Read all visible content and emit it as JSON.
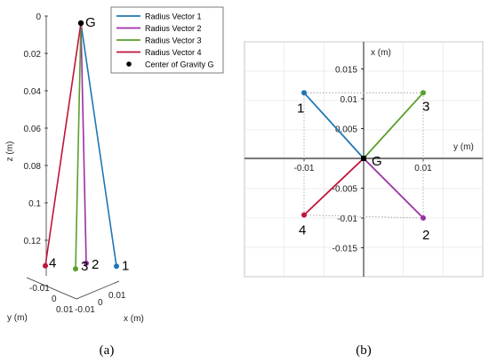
{
  "colors": {
    "vector1": "#1f77b4",
    "vector2": "#9b2fa6",
    "vector3": "#5aa02c",
    "vector4": "#c0143c",
    "center": "#000000"
  },
  "chart_data": [
    {
      "type": "line",
      "panel": "(a)",
      "caption": "(a)",
      "projection": "3d",
      "xlabel": "x (m)",
      "ylabel": "y (m)",
      "zlabel": "z (m)",
      "zlim": [
        0,
        0.14
      ],
      "z_direction": "downward",
      "xlim": [
        -0.01,
        0.01
      ],
      "ylim": [
        -0.01,
        0.01
      ],
      "z_ticks": [
        "0",
        "0.02",
        "0.04",
        "0.06",
        "0.08",
        "0.1",
        "0.12"
      ],
      "x_ticks": [
        "-0.01",
        "0",
        "0.01"
      ],
      "y_ticks": [
        "-0.01",
        "0",
        "0.01"
      ],
      "center_label": "G",
      "center": {
        "x": 0,
        "y": 0,
        "z": 0
      },
      "series": [
        {
          "name": "Radius Vector 1",
          "label": "1",
          "color": "#1f77b4",
          "from": {
            "x": 0,
            "y": 0,
            "z": 0
          },
          "to": {
            "x": 0.01,
            "y": -0.01,
            "z": 0.13
          }
        },
        {
          "name": "Radius Vector 2",
          "label": "2",
          "color": "#9b2fa6",
          "from": {
            "x": 0,
            "y": 0,
            "z": 0
          },
          "to": {
            "x": -0.01,
            "y": -0.01,
            "z": 0.13
          }
        },
        {
          "name": "Radius Vector 3",
          "label": "3",
          "color": "#5aa02c",
          "from": {
            "x": 0,
            "y": 0,
            "z": 0
          },
          "to": {
            "x": 0.01,
            "y": 0.01,
            "z": 0.13
          }
        },
        {
          "name": "Radius Vector 4",
          "label": "4",
          "color": "#c0143c",
          "from": {
            "x": 0,
            "y": 0,
            "z": 0
          },
          "to": {
            "x": -0.01,
            "y": 0.01,
            "z": 0.13
          }
        }
      ],
      "legend": {
        "position": "top-right",
        "entries": [
          "Radius Vector 1",
          "Radius Vector 2",
          "Radius Vector 3",
          "Radius Vector 4",
          "Center of Gravity G"
        ]
      }
    },
    {
      "type": "line",
      "panel": "(b)",
      "caption": "(b)",
      "projection": "top view",
      "xlabel": "y (m)",
      "ylabel": "x (m)",
      "xlim": [
        -0.02,
        0.02
      ],
      "ylim": [
        -0.02,
        0.02
      ],
      "x_ticks": [
        -0.01,
        0.01
      ],
      "x_tick_labels": [
        "-0.01",
        "0.01"
      ],
      "y_ticks": [
        0.015,
        0.01,
        0.005,
        -0.005,
        -0.01,
        -0.015
      ],
      "y_tick_labels": [
        "0.015",
        "0.01",
        "0.005",
        "-0.005",
        "-0.01",
        "-0.015"
      ],
      "grid": true,
      "center_label": "G",
      "center": {
        "y": 0,
        "x": 0
      },
      "series": [
        {
          "name": "Radius Vector 1",
          "label": "1",
          "color": "#1f77b4",
          "y": -0.01,
          "x": 0.011
        },
        {
          "name": "Radius Vector 2",
          "label": "2",
          "color": "#9b2fa6",
          "y": 0.01,
          "x": -0.01
        },
        {
          "name": "Radius Vector 3",
          "label": "3",
          "color": "#5aa02c",
          "y": 0.01,
          "x": 0.011
        },
        {
          "name": "Radius Vector 4",
          "label": "4",
          "color": "#c0143c",
          "y": -0.01,
          "x": -0.0095
        }
      ]
    }
  ]
}
